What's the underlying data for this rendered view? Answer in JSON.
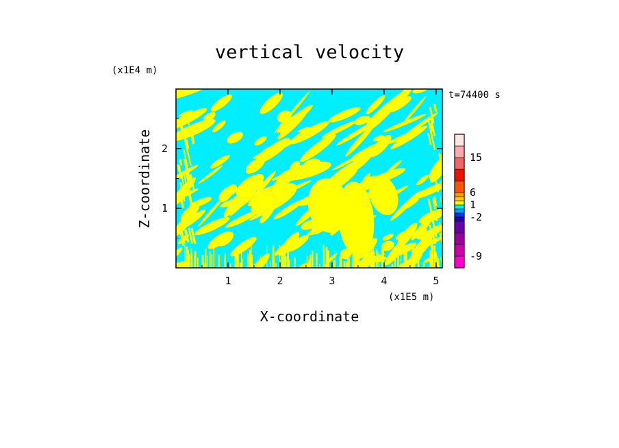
{
  "chart_data": {
    "type": "heatmap",
    "title": "vertical velocity",
    "xlabel": "X-coordinate",
    "ylabel": "Z-coordinate",
    "x_unit": "(x1E5 m)",
    "y_unit": "(x1E4 m)",
    "time_label": "t=74400 s",
    "xlim": [
      0,
      5.12
    ],
    "ylim": [
      0,
      3.0
    ],
    "x_ticks": [
      1,
      2,
      3,
      4,
      5
    ],
    "y_ticks": [
      1,
      2
    ],
    "colorbar": {
      "levels": [
        {
          "lower": -12,
          "color": "#ff00cc"
        },
        {
          "lower": -9,
          "color": "#cc00aa"
        },
        {
          "lower": -6,
          "color": "#990099"
        },
        {
          "lower": -4,
          "color": "#6600aa"
        },
        {
          "lower": -3,
          "color": "#2200aa"
        },
        {
          "lower": -2,
          "color": "#0033ff"
        },
        {
          "lower": -1,
          "color": "#00a0ff"
        },
        {
          "lower": 0,
          "color": "#00eeff"
        },
        {
          "lower": 1,
          "color": "#ffff00"
        },
        {
          "lower": 2,
          "color": "#ffcc00"
        },
        {
          "lower": 3,
          "color": "#ff9900"
        },
        {
          "lower": 6,
          "color": "#ff5500"
        },
        {
          "lower": 9,
          "color": "#ee1100"
        },
        {
          "lower": 12,
          "color": "#ee6666"
        },
        {
          "lower": 15,
          "color": "#ffaaaa"
        },
        {
          "lower": 18,
          "color": "#ffe6e0"
        }
      ],
      "tick_labels": [
        "-9",
        "-2",
        "1",
        "6",
        "15"
      ]
    },
    "field_colors": {
      "upward": "#ffff00",
      "downward": "#00eeff"
    }
  }
}
